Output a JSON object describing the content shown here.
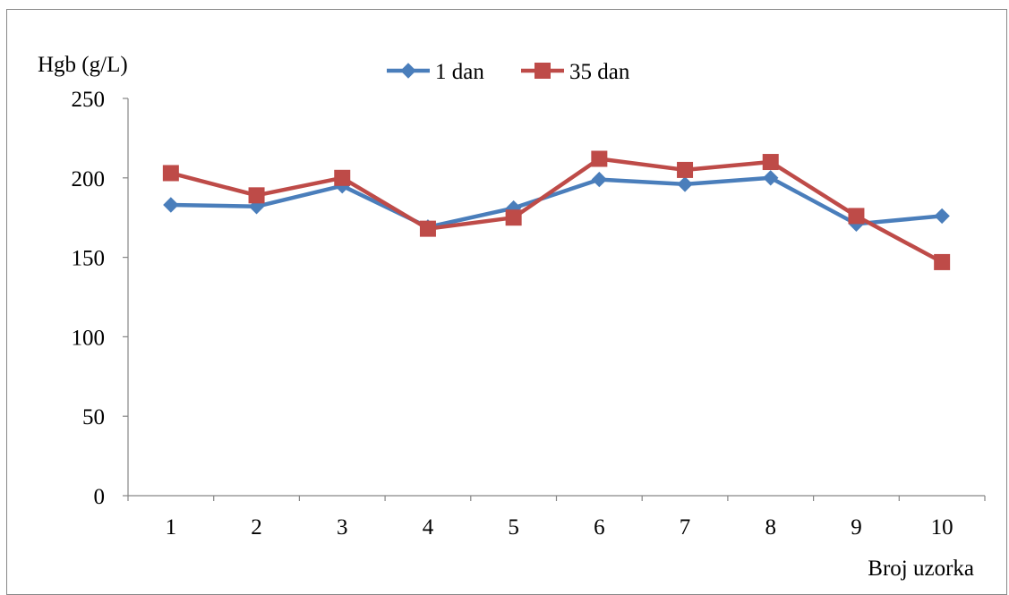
{
  "chart_data": {
    "type": "line",
    "title": "",
    "xlabel": "Broj uzorka",
    "ylabel": "Hgb (g/L)",
    "categories": [
      "1",
      "2",
      "3",
      "4",
      "5",
      "6",
      "7",
      "8",
      "9",
      "10"
    ],
    "ylim": [
      0,
      250
    ],
    "yticks": [
      "0",
      "50",
      "100",
      "150",
      "200",
      "250"
    ],
    "grid": false,
    "legend_position": "top-center",
    "series": [
      {
        "name": "1 dan",
        "color": "#4a7ebb",
        "marker": "diamond",
        "values": [
          183,
          182,
          195,
          169,
          181,
          199,
          196,
          200,
          171,
          176
        ]
      },
      {
        "name": "35 dan",
        "color": "#be4b48",
        "marker": "square",
        "values": [
          203,
          189,
          200,
          168,
          175,
          212,
          205,
          210,
          176,
          147
        ]
      }
    ]
  }
}
